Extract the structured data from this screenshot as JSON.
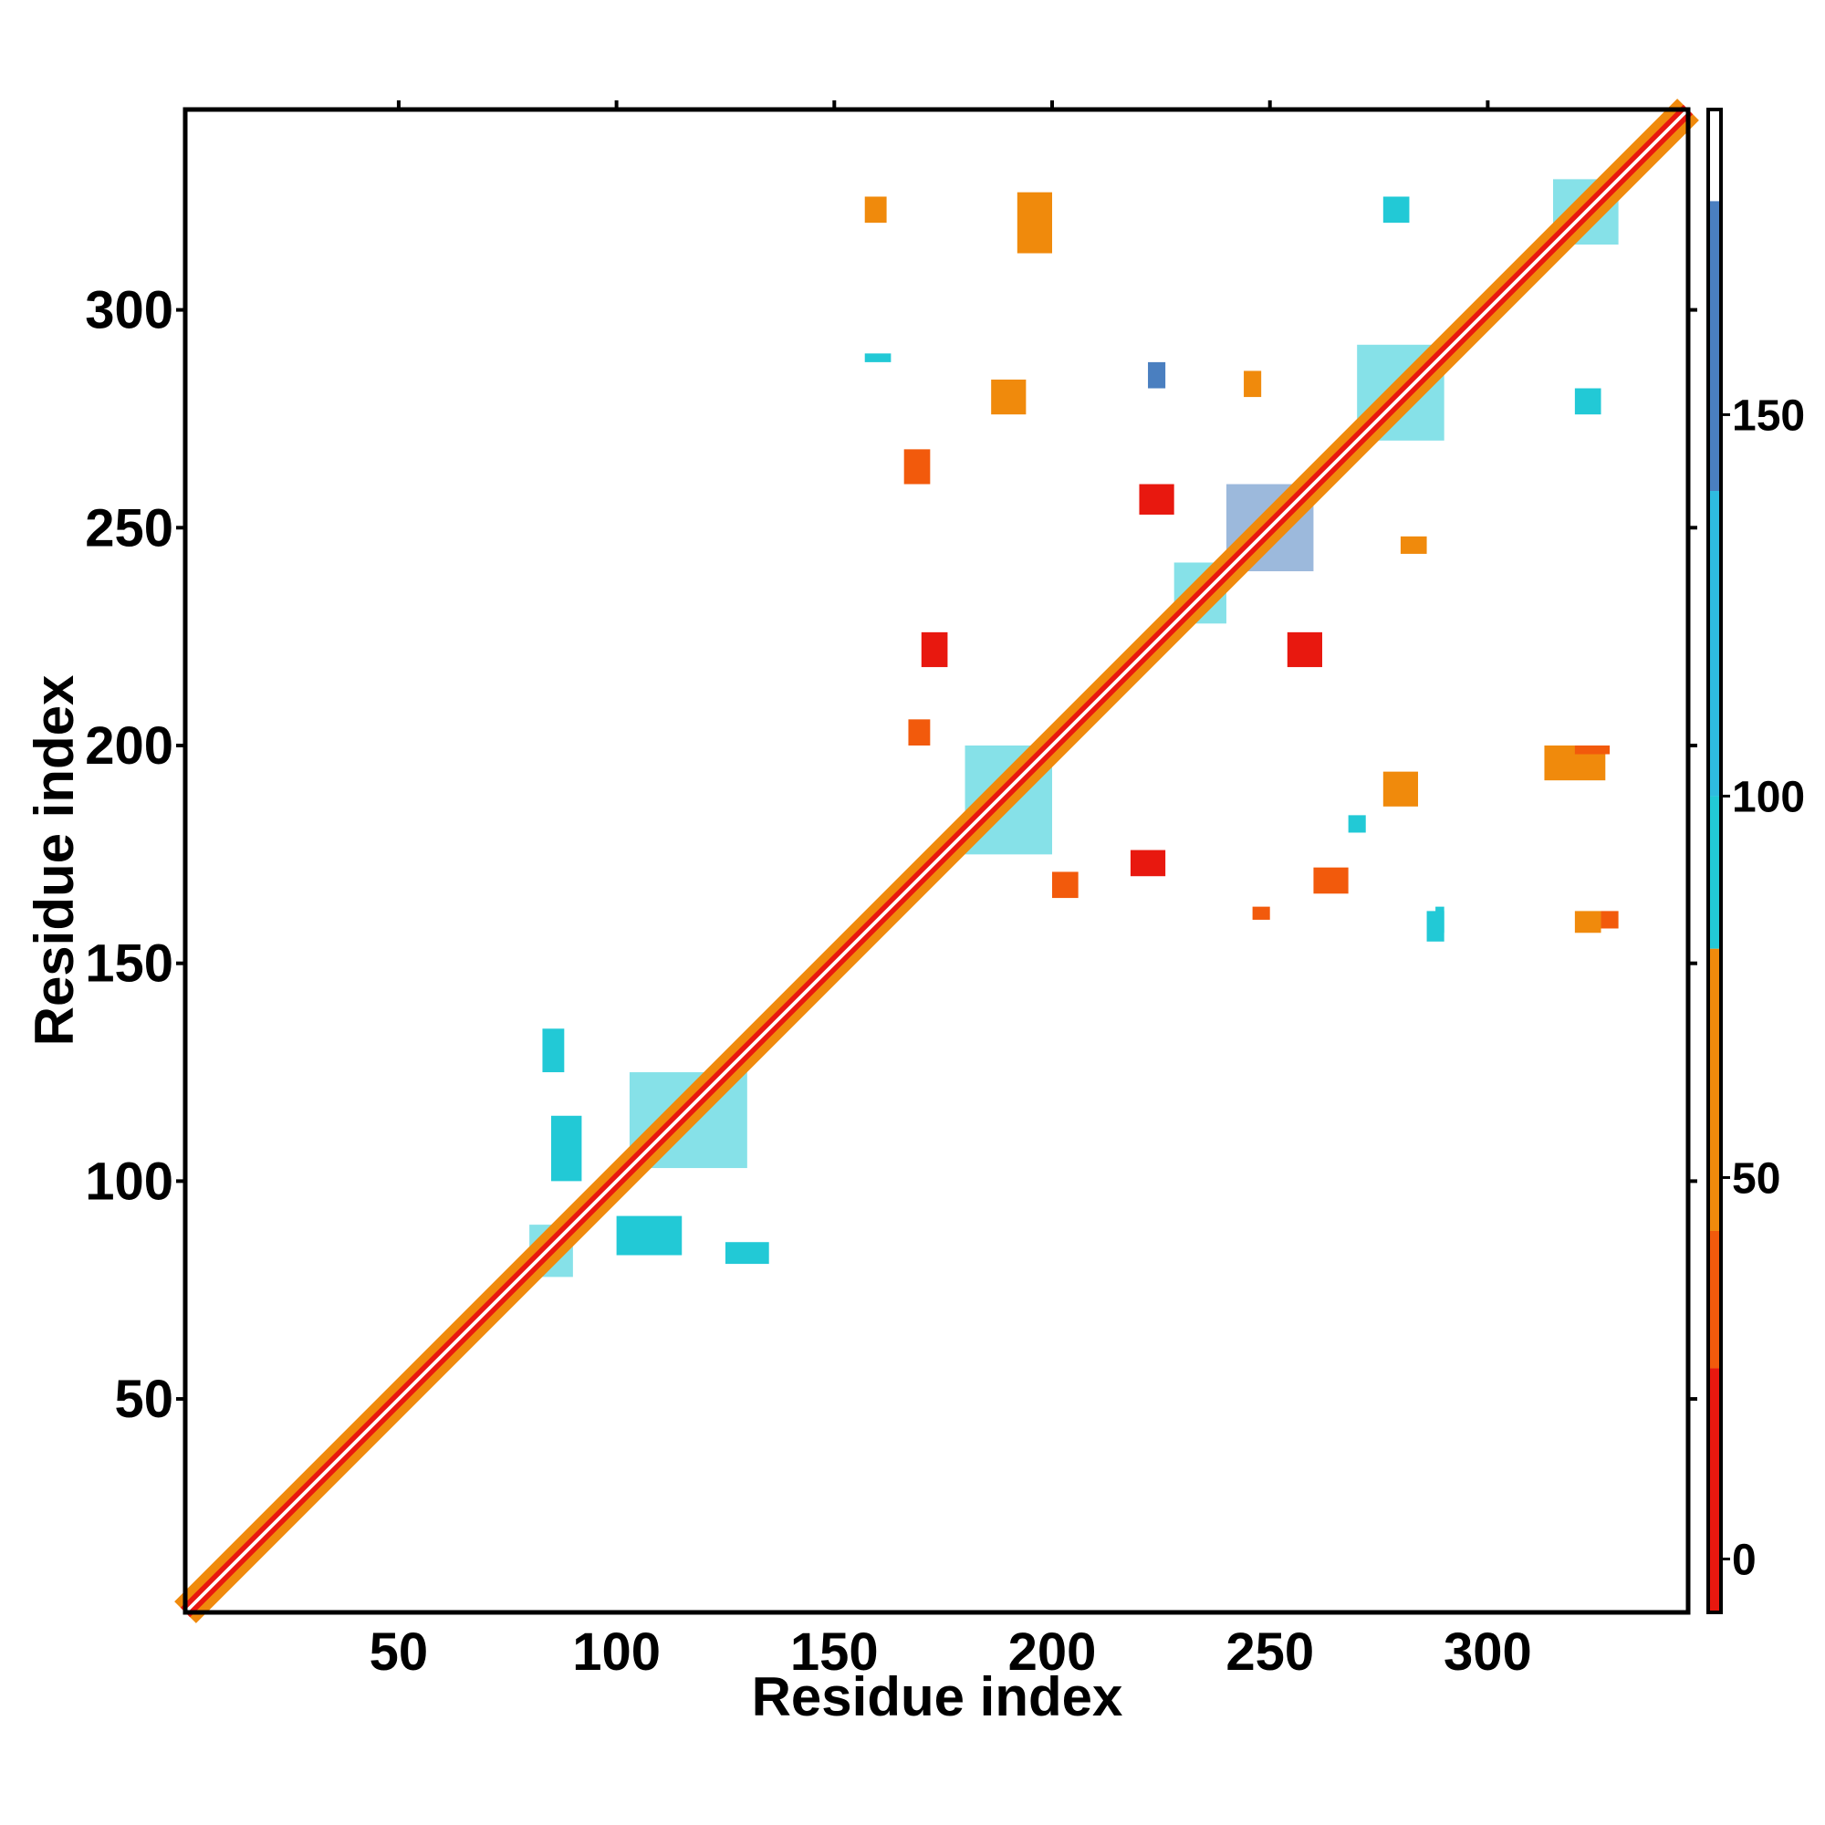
{
  "chart_data": {
    "type": "heatmap",
    "title": "",
    "xlabel": "Residue index",
    "ylabel": "Residue index",
    "xlim": [
      1,
      346
    ],
    "ylim": [
      1,
      346
    ],
    "xticks": [
      50,
      100,
      150,
      200,
      250,
      300
    ],
    "yticks": [
      50,
      100,
      150,
      200,
      250,
      300
    ],
    "colorbar": {
      "ticks": [
        0,
        50,
        100,
        150
      ],
      "range": [
        -7,
        190
      ],
      "bands": [
        {
          "from": -7,
          "to": 25,
          "color": "#e8180f"
        },
        {
          "from": 25,
          "to": 43,
          "color": "#f25a0c"
        },
        {
          "from": 43,
          "to": 80,
          "color": "#f08a0c"
        },
        {
          "from": 80,
          "to": 100,
          "color": "#22c9d6"
        },
        {
          "from": 100,
          "to": 140,
          "color": "#2ebbe0"
        },
        {
          "from": 140,
          "to": 178,
          "color": "#4a7fc0"
        },
        {
          "from": 178,
          "to": 190,
          "color": "#ffffff"
        }
      ]
    },
    "diagonal": {
      "from": 1,
      "to": 346
    },
    "regions": [
      {
        "x": [
          80,
          90
        ],
        "y": [
          78,
          90
        ],
        "color": "#22c9d6"
      },
      {
        "x": [
          103,
          130
        ],
        "y": [
          103,
          125
        ],
        "color": "#22c9d6"
      },
      {
        "x": [
          180,
          200
        ],
        "y": [
          175,
          200
        ],
        "color": "#22c9d6"
      },
      {
        "x": [
          270,
          290
        ],
        "y": [
          270,
          292
        ],
        "color": "#22c9d6"
      },
      {
        "x": [
          315,
          330
        ],
        "y": [
          315,
          330
        ],
        "color": "#22c9d6"
      },
      {
        "x": [
          240,
          260
        ],
        "y": [
          240,
          260
        ],
        "color": "#4a7fc0"
      },
      {
        "x": [
          228,
          240
        ],
        "y": [
          228,
          242
        ],
        "color": "#22c9d6"
      }
    ],
    "contacts": [
      {
        "x": [
          170,
          176
        ],
        "y": [
          218,
          226
        ],
        "color": "#e8180f"
      },
      {
        "x": [
          167,
          172
        ],
        "y": [
          200,
          206
        ],
        "color": "#f25a0c"
      },
      {
        "x": [
          200,
          206
        ],
        "y": [
          165,
          171
        ],
        "color": "#f25a0c"
      },
      {
        "x": [
          218,
          226
        ],
        "y": [
          170,
          176
        ],
        "color": "#e8180f"
      },
      {
        "x": [
          220,
          228
        ],
        "y": [
          253,
          260
        ],
        "color": "#e8180f"
      },
      {
        "x": [
          254,
          262
        ],
        "y": [
          218,
          226
        ],
        "color": "#e8180f"
      },
      {
        "x": [
          186,
          194
        ],
        "y": [
          276,
          284
        ],
        "color": "#f08a0c"
      },
      {
        "x": [
          276,
          284
        ],
        "y": [
          186,
          194
        ],
        "color": "#f08a0c"
      },
      {
        "x": [
          157,
          162
        ],
        "y": [
          320,
          326
        ],
        "color": "#f08a0c"
      },
      {
        "x": [
          320,
          326
        ],
        "y": [
          157,
          162
        ],
        "color": "#f08a0c"
      },
      {
        "x": [
          192,
          200
        ],
        "y": [
          313,
          327
        ],
        "color": "#f08a0c"
      },
      {
        "x": [
          313,
          327
        ],
        "y": [
          192,
          200
        ],
        "color": "#f08a0c"
      },
      {
        "x": [
          157,
          163
        ],
        "y": [
          288,
          290
        ],
        "color": "#22c9d6"
      },
      {
        "x": [
          288,
          290
        ],
        "y": [
          157,
          163
        ],
        "color": "#22c9d6"
      },
      {
        "x": [
          276,
          282
        ],
        "y": [
          320,
          326
        ],
        "color": "#22c9d6"
      },
      {
        "x": [
          320,
          326
        ],
        "y": [
          276,
          282
        ],
        "color": "#22c9d6"
      },
      {
        "x": [
          244,
          248
        ],
        "y": [
          280,
          286
        ],
        "color": "#f08a0c"
      },
      {
        "x": [
          280,
          286
        ],
        "y": [
          244,
          248
        ],
        "color": "#f08a0c"
      },
      {
        "x": [
          85,
          92
        ],
        "y": [
          100,
          115
        ],
        "color": "#22c9d6"
      },
      {
        "x": [
          100,
          115
        ],
        "y": [
          83,
          92
        ],
        "color": "#22c9d6"
      },
      {
        "x": [
          83,
          88
        ],
        "y": [
          125,
          135
        ],
        "color": "#22c9d6"
      },
      {
        "x": [
          125,
          135
        ],
        "y": [
          81,
          86
        ],
        "color": "#22c9d6"
      },
      {
        "x": [
          166,
          172
        ],
        "y": [
          260,
          268
        ],
        "color": "#f25a0c"
      },
      {
        "x": [
          260,
          268
        ],
        "y": [
          166,
          172
        ],
        "color": "#f25a0c"
      },
      {
        "x": [
          222,
          226
        ],
        "y": [
          282,
          288
        ],
        "color": "#4a7fc0"
      },
      {
        "x": [
          320,
          328
        ],
        "y": [
          198,
          200
        ],
        "color": "#f25a0c"
      },
      {
        "x": [
          326,
          330
        ],
        "y": [
          158,
          162
        ],
        "color": "#f25a0c"
      },
      {
        "x": [
          286,
          290
        ],
        "y": [
          155,
          162
        ],
        "color": "#22c9d6"
      },
      {
        "x": [
          246,
          250
        ],
        "y": [
          160,
          163
        ],
        "color": "#f25a0c"
      },
      {
        "x": [
          268,
          272
        ],
        "y": [
          180,
          184
        ],
        "color": "#22c9d6"
      }
    ]
  }
}
